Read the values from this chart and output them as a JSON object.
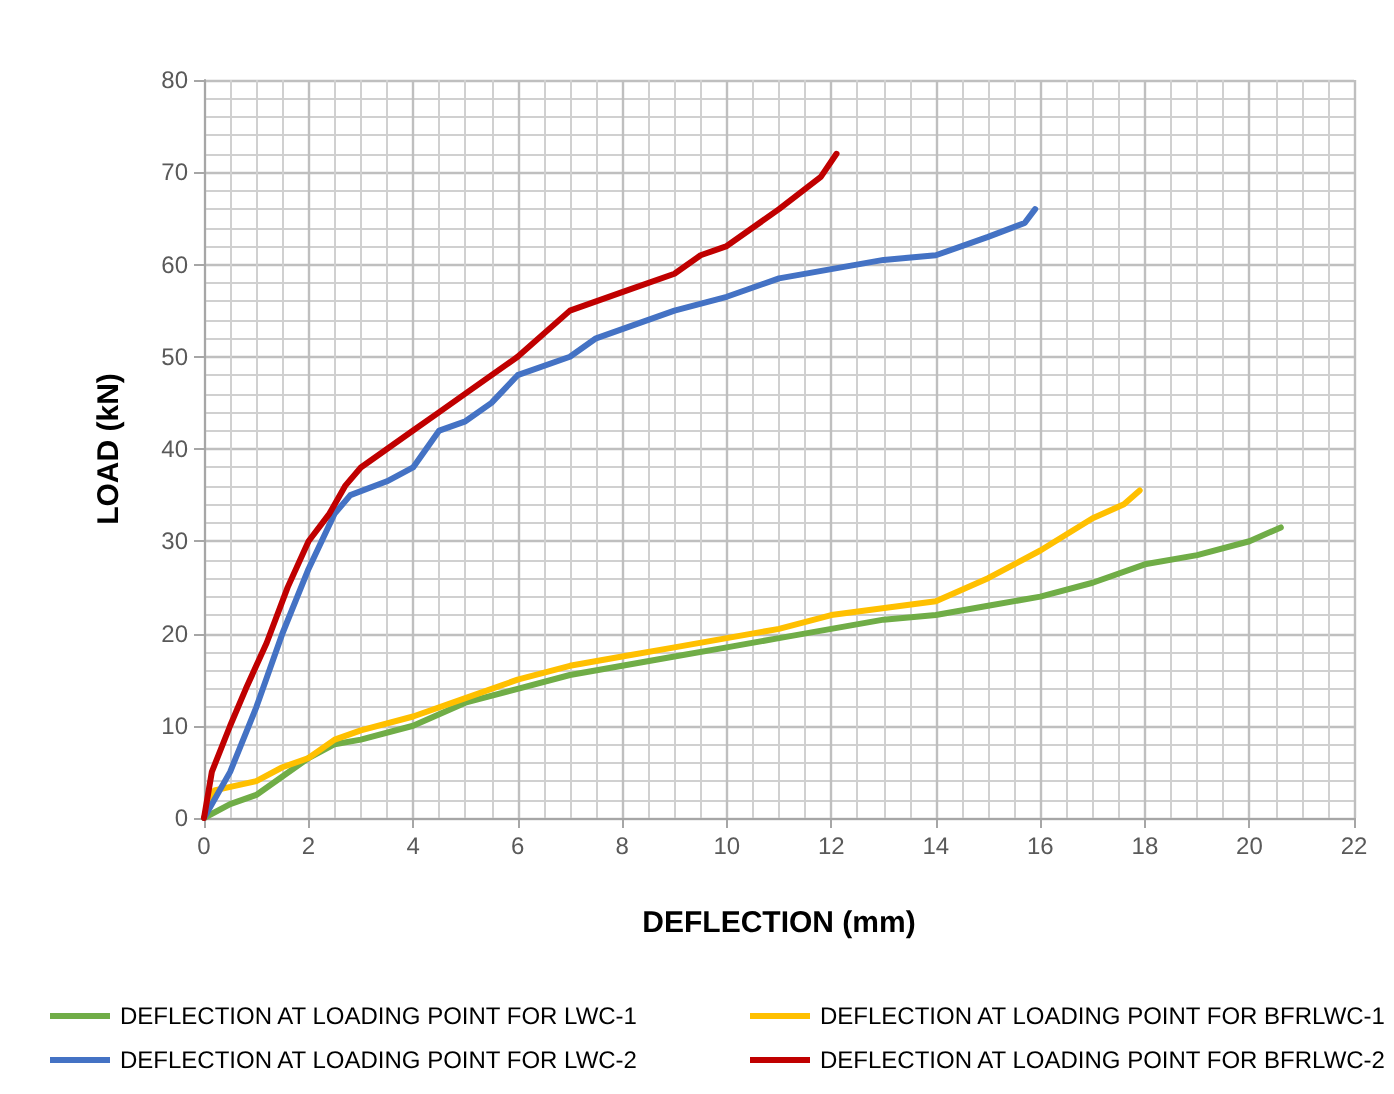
{
  "chart_data": {
    "type": "line",
    "xlabel": "DEFLECTION (mm)",
    "ylabel": "LOAD (kN)",
    "xlim": [
      0,
      22
    ],
    "ylim": [
      0,
      80
    ],
    "xticks": [
      0,
      2,
      4,
      6,
      8,
      10,
      12,
      14,
      16,
      18,
      20,
      22
    ],
    "yticks": [
      0,
      10,
      20,
      30,
      40,
      50,
      60,
      70,
      80
    ],
    "grid": true,
    "legend": "bottom",
    "marker": "none",
    "line_style": "solid",
    "series": [
      {
        "name": "DEFLECTION AT LOADING POINT FOR LWC-1",
        "color": "#70ad47",
        "x": [
          0,
          0.5,
          1,
          1.5,
          2,
          2.5,
          3,
          4,
          5,
          6,
          7,
          8,
          9,
          10,
          11,
          12,
          13,
          14,
          15,
          16,
          17,
          18,
          19,
          20,
          20.6
        ],
        "values": [
          0,
          1.5,
          2.5,
          4.5,
          6.5,
          8,
          8.5,
          10,
          12.5,
          14,
          15.5,
          16.5,
          17.5,
          18.5,
          19.5,
          20.5,
          21.5,
          22,
          23,
          24,
          25.5,
          27.5,
          28.5,
          30,
          31.5
        ]
      },
      {
        "name": "DEFLECTION AT LOADING POINT FOR BFRLWC-1",
        "color": "#ffc000",
        "x": [
          0,
          0.2,
          1,
          1.5,
          2,
          2.5,
          3,
          4,
          5,
          6,
          7,
          8,
          9,
          10,
          11,
          12,
          14,
          15,
          16,
          17,
          17.6,
          17.9
        ],
        "values": [
          0,
          3,
          4,
          5.5,
          6.5,
          8.5,
          9.5,
          11,
          13,
          15,
          16.5,
          17.5,
          18.5,
          19.5,
          20.5,
          22,
          23.5,
          26,
          29,
          32.5,
          34,
          35.5
        ]
      },
      {
        "name": "DEFLECTION AT LOADING POINT FOR LWC-2",
        "color": "#4472c4",
        "x": [
          0,
          0.5,
          1,
          1.5,
          2,
          2.5,
          2.8,
          3.5,
          4,
          4.5,
          5,
          5.5,
          6,
          7,
          7.5,
          8,
          9,
          10,
          11,
          12,
          13,
          14,
          15,
          15.7,
          15.9
        ],
        "values": [
          0,
          5,
          12,
          20,
          27,
          33,
          35,
          36.5,
          38,
          42,
          43,
          45,
          48,
          50,
          52,
          53,
          55,
          56.5,
          58.5,
          59.5,
          60.5,
          61,
          63,
          64.5,
          66
        ]
      },
      {
        "name": "DEFLECTION AT LOADING POINT FOR BFRLWC-2",
        "color": "#c00000",
        "x": [
          0,
          0.15,
          0.5,
          0.8,
          1.2,
          1.6,
          2,
          2.4,
          2.7,
          3,
          3.5,
          4,
          4.5,
          5,
          6,
          7,
          8,
          9,
          9.5,
          10,
          11,
          11.8,
          12.1
        ],
        "values": [
          0,
          5,
          10,
          14,
          19,
          25,
          30,
          33,
          36,
          38,
          40,
          42,
          44,
          46,
          50,
          55,
          57,
          59,
          61,
          62,
          66,
          69.5,
          72
        ]
      }
    ]
  }
}
